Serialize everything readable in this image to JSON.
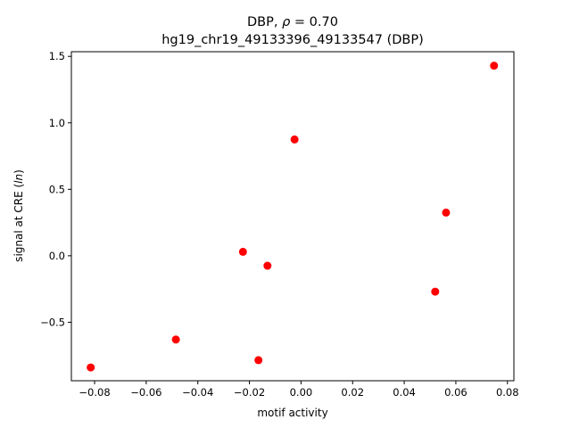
{
  "chart_data": {
    "type": "scatter",
    "title_main": "DBP, ",
    "title_rho": "ρ",
    "title_rest": " = 0.70",
    "subtitle": "hg19_chr19_49133396_49133547 (DBP)",
    "xlabel": "motif activity",
    "ylabel": "signal at CRE (",
    "ylabel_italic": "ln",
    "ylabel_close": ")",
    "xlim": [
      -0.089,
      0.0825
    ],
    "ylim": [
      -0.94,
      1.535
    ],
    "xticks": [
      -0.08,
      -0.06,
      -0.04,
      -0.02,
      0.0,
      0.02,
      0.04,
      0.06,
      0.08
    ],
    "xtick_labels": [
      "−0.08",
      "−0.06",
      "−0.04",
      "−0.02",
      "0.00",
      "0.02",
      "0.04",
      "0.06",
      "0.08"
    ],
    "yticks": [
      -0.5,
      0.0,
      0.5,
      1.0,
      1.5
    ],
    "ytick_labels": [
      "−0.5",
      "0.0",
      "0.5",
      "1.0",
      "1.5"
    ],
    "grid": false,
    "marker_color": "#ff0000",
    "points": [
      {
        "x": -0.0815,
        "y": -0.84
      },
      {
        "x": -0.0485,
        "y": -0.63
      },
      {
        "x": -0.0225,
        "y": 0.03
      },
      {
        "x": -0.0165,
        "y": -0.785
      },
      {
        "x": -0.013,
        "y": -0.075
      },
      {
        "x": -0.0025,
        "y": 0.875
      },
      {
        "x": 0.052,
        "y": -0.27
      },
      {
        "x": 0.0562,
        "y": 0.325
      },
      {
        "x": 0.0748,
        "y": 1.43
      }
    ]
  }
}
